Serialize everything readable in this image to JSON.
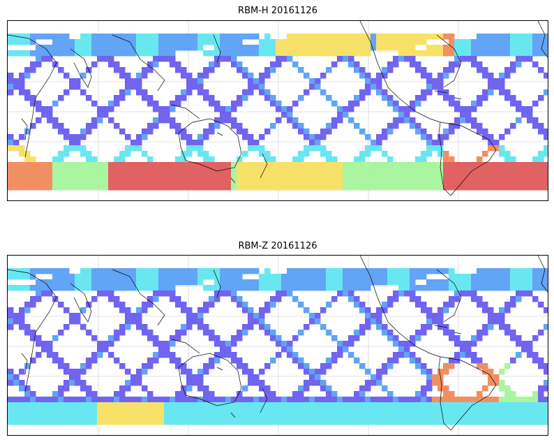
{
  "panels": [
    {
      "title": "RBM-H 20161126"
    },
    {
      "title": "RBM-Z 20161126"
    }
  ],
  "palette": {
    "low": "#6a5cf0",
    "low_mid": "#5aa0f5",
    "mid": "#62e6f0",
    "mid_high": "#a6f59a",
    "high": "#f7e062",
    "very_high": "#f28a5a",
    "max": "#e05a5a",
    "coast": "#000000",
    "grid": "#c8c8c8"
  }
}
